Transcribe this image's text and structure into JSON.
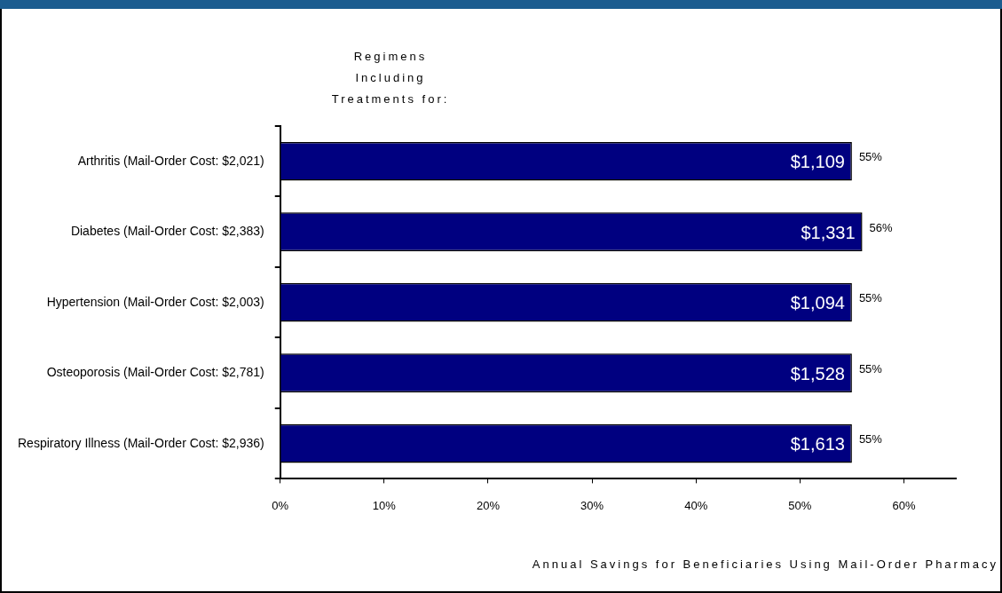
{
  "chart_data": {
    "type": "bar",
    "orientation": "horizontal",
    "ylabel": "Regimens Including Treatments for:",
    "xlabel": "Annual Savings for Beneficiaries Using Mail-Order Pharmacy",
    "categories": [
      "Arthritis (Mail-Order Cost: $2,021)",
      "Diabetes (Mail-Order Cost: $2,383)",
      "Hypertension (Mail-Order Cost: $2,003)",
      "Osteoporosis (Mail-Order Cost: $2,781)",
      "Respiratory Illness (Mail-Order Cost: $2,936)"
    ],
    "values": [
      55,
      56,
      55,
      55,
      55
    ],
    "value_labels": [
      "55%",
      "56%",
      "55%",
      "55%",
      "55%"
    ],
    "color": "#000080",
    "xlim": [
      0,
      65
    ],
    "xticks": [
      {
        "value": 0,
        "label": "0%"
      },
      {
        "value": 10,
        "label": "10%"
      },
      {
        "value": 20,
        "label": "20%"
      },
      {
        "value": 30,
        "label": "30%"
      },
      {
        "value": 40,
        "label": "40%"
      },
      {
        "value": 50,
        "label": "50%"
      },
      {
        "value": 60,
        "label": "60%"
      }
    ],
    "annotations": [
      "$1,109",
      "$1,331",
      "$1,094",
      "$1,528",
      "$1,613"
    ],
    "grid": false,
    "legend": false
  }
}
